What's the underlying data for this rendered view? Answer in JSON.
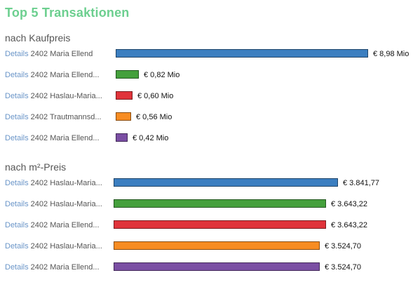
{
  "title": "Top 5 Transaktionen",
  "colors": [
    "#3b7ec0",
    "#44a03c",
    "#e0333a",
    "#f78c22",
    "#7a4ea3"
  ],
  "chart_data": [
    {
      "type": "bar",
      "title": "nach Kaufpreis",
      "link_label": "Details",
      "categories": [
        "2402 Maria Ellend",
        "2402 Maria Ellend...",
        "2402 Haslau-Maria...",
        "2402 Trautmannsd...",
        "2402 Maria Ellend..."
      ],
      "values": [
        8.98,
        0.82,
        0.6,
        0.56,
        0.42
      ],
      "value_labels": [
        "€ 8,98 Mio",
        "€ 0,82 Mio",
        "€ 0,60 Mio",
        "€ 0,56 Mio",
        "€ 0,42 Mio"
      ]
    },
    {
      "type": "bar",
      "title": "nach m²-Preis",
      "link_label": "Details",
      "categories": [
        "2402 Haslau-Maria...",
        "2402 Haslau-Maria...",
        "2402 Maria Ellend...",
        "2402 Haslau-Maria...",
        "2402 Maria Ellend..."
      ],
      "values": [
        3841.77,
        3643.22,
        3643.22,
        3524.7,
        3524.7
      ],
      "value_labels": [
        "€ 3.841,77",
        "€ 3.643,22",
        "€ 3.643,22",
        "€ 3.524,70",
        "€ 3.524,70"
      ]
    }
  ]
}
